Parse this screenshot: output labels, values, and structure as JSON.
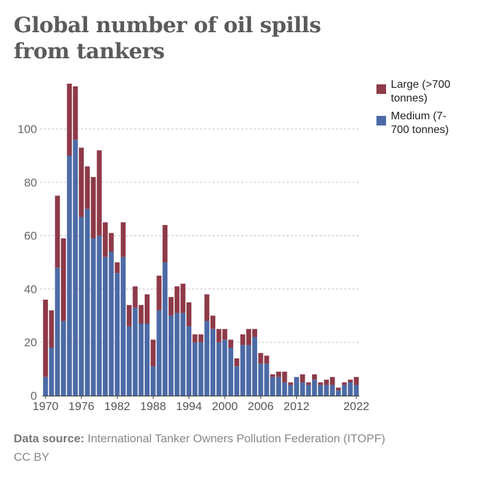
{
  "title": "Global number of oil spills from tankers",
  "legend": [
    {
      "label": "Large (>700 tonnes)",
      "color": "#8e3a48"
    },
    {
      "label": "Medium (7-700 tonnes)",
      "color": "#4c6aa6"
    }
  ],
  "footer": {
    "source_label": "Data source:",
    "source_text": "International Tanker Owners Pollution Federation (ITOPF)",
    "license": "CC BY"
  },
  "chart_data": {
    "type": "bar",
    "stacked": true,
    "title": "Global number of oil spills from tankers",
    "xlabel": "",
    "ylabel": "",
    "ylim": [
      0,
      117
    ],
    "yticks": [
      0,
      20,
      40,
      60,
      80,
      100
    ],
    "xtick_labels": [
      "1970",
      "1976",
      "1982",
      "1988",
      "1994",
      "2000",
      "2006",
      "2012",
      "2022"
    ],
    "categories": [
      1970,
      1971,
      1972,
      1973,
      1974,
      1975,
      1976,
      1977,
      1978,
      1979,
      1980,
      1981,
      1982,
      1983,
      1984,
      1985,
      1986,
      1987,
      1988,
      1989,
      1990,
      1991,
      1992,
      1993,
      1994,
      1995,
      1996,
      1997,
      1998,
      1999,
      2000,
      2001,
      2002,
      2003,
      2004,
      2005,
      2006,
      2007,
      2008,
      2009,
      2010,
      2011,
      2012,
      2013,
      2014,
      2015,
      2016,
      2017,
      2018,
      2019,
      2020,
      2021,
      2022
    ],
    "series": [
      {
        "name": "Medium (7-700 tonnes)",
        "color": "#4c6aa6",
        "values": [
          7,
          18,
          48,
          28,
          90,
          96,
          67,
          70,
          59,
          60,
          52,
          54,
          46,
          52,
          26,
          33,
          27,
          27,
          11,
          32,
          50,
          30,
          31,
          31,
          26,
          20,
          20,
          28,
          25,
          20,
          21,
          18,
          11,
          19,
          19,
          22,
          12,
          12,
          7,
          7,
          5,
          4,
          7,
          5,
          4,
          6,
          4,
          4,
          4,
          2,
          4,
          5,
          4
        ]
      },
      {
        "name": "Large (>700 tonnes)",
        "color": "#8e3a48",
        "values": [
          29,
          14,
          27,
          31,
          27,
          20,
          26,
          16,
          23,
          32,
          13,
          7,
          4,
          13,
          8,
          8,
          7,
          11,
          10,
          13,
          14,
          7,
          10,
          11,
          9,
          3,
          3,
          10,
          5,
          5,
          4,
          3,
          3,
          4,
          6,
          3,
          4,
          3,
          1,
          2,
          4,
          1,
          0,
          3,
          1,
          2,
          1,
          2,
          3,
          1,
          1,
          1,
          3
        ]
      }
    ]
  }
}
